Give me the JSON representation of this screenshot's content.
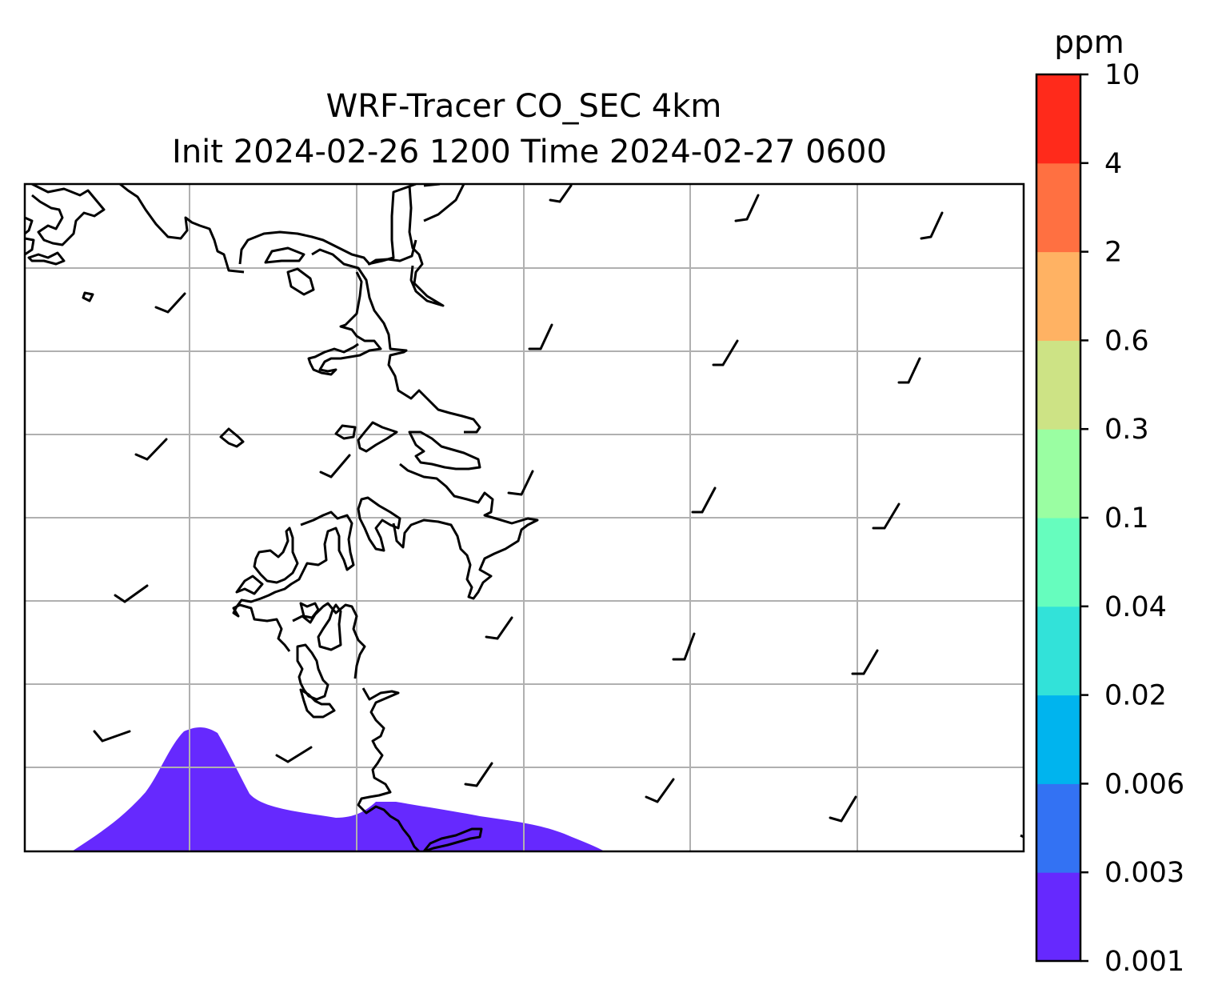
{
  "title": {
    "line1": "WRF-Tracer CO_SEC 4km",
    "line2": "Init 2024-02-26 1200 Time 2024-02-27 0600"
  },
  "colorbar": {
    "unit": "ppm",
    "levels": [
      "0.001",
      "0.003",
      "0.006",
      "0.02",
      "0.04",
      "0.1",
      "0.3",
      "0.6",
      "2",
      "4",
      "10"
    ],
    "colors": [
      "#6629fe",
      "#3372f3",
      "#00b4ee",
      "#32e2d9",
      "#66fdbe",
      "#9afea2",
      "#cde385",
      "#ffb263",
      "#ff7041",
      "#ff2a1b"
    ]
  },
  "map": {
    "gridlines": true,
    "gridline_color": "#b0b0b0",
    "coastline_color": "#000000",
    "fill_color": "#6629fe",
    "wind_barbs": "uniform southwesterly flow, short barbs"
  }
}
